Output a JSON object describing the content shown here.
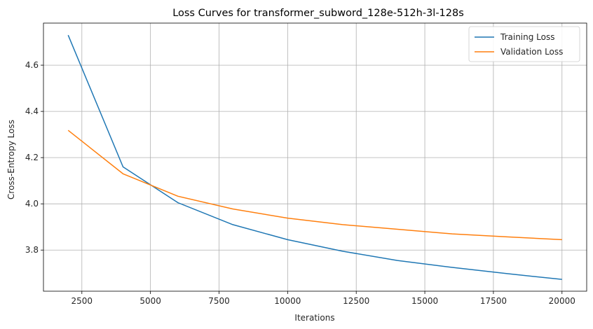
{
  "chart_data": {
    "type": "line",
    "title": "Loss Curves for transformer_subword_128e-512h-3l-128s",
    "xlabel": "Iterations",
    "ylabel": "Cross-Entropy Loss",
    "x": [
      2000,
      4000,
      6000,
      8000,
      10000,
      12000,
      14000,
      16000,
      18000,
      20000
    ],
    "xlim": [
      1100,
      20900
    ],
    "ylim": [
      3.622,
      4.782
    ],
    "xticks": [
      2500,
      5000,
      7500,
      10000,
      12500,
      15000,
      17500,
      20000
    ],
    "xtick_labels": [
      "2500",
      "5000",
      "7500",
      "10000",
      "12500",
      "15000",
      "17500",
      "20000"
    ],
    "yticks": [
      3.8,
      4.0,
      4.2,
      4.4,
      4.6
    ],
    "ytick_labels": [
      "3.8",
      "4.0",
      "4.2",
      "4.4",
      "4.6"
    ],
    "grid": true,
    "legend_position": "top-right",
    "series": [
      {
        "name": "Training Loss",
        "color": "#1f77b4",
        "values": [
          4.73,
          4.16,
          4.005,
          3.91,
          3.845,
          3.795,
          3.755,
          3.725,
          3.698,
          3.673
        ]
      },
      {
        "name": "Validation Loss",
        "color": "#ff7f0e",
        "values": [
          4.318,
          4.13,
          4.033,
          3.978,
          3.938,
          3.91,
          3.89,
          3.87,
          3.857,
          3.845
        ]
      }
    ]
  }
}
